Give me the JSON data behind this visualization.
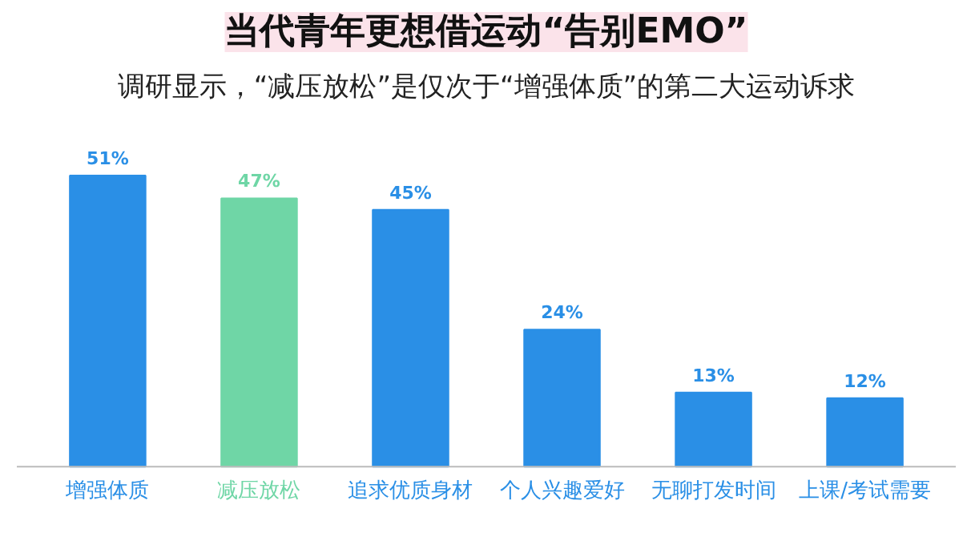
{
  "chart_data": {
    "type": "bar",
    "title": "当代青年更想借运动“告别EMO”",
    "subtitle": "调研显示，“减压放松”是仅次于“增强体质”的第二大运动诉求",
    "categories": [
      "增强体质",
      "减压放松",
      "追求优质身材",
      "个人兴趣爱好",
      "无聊打发时间",
      "上课/考试需要"
    ],
    "values": [
      51,
      47,
      45,
      24,
      13,
      12
    ],
    "value_labels": [
      "51%",
      "47%",
      "45%",
      "24%",
      "13%",
      "12%"
    ],
    "colors": [
      "#2a8fe6",
      "#6fd6a6",
      "#2a8fe6",
      "#2a8fe6",
      "#2a8fe6",
      "#2a8fe6"
    ],
    "grid": false
  }
}
